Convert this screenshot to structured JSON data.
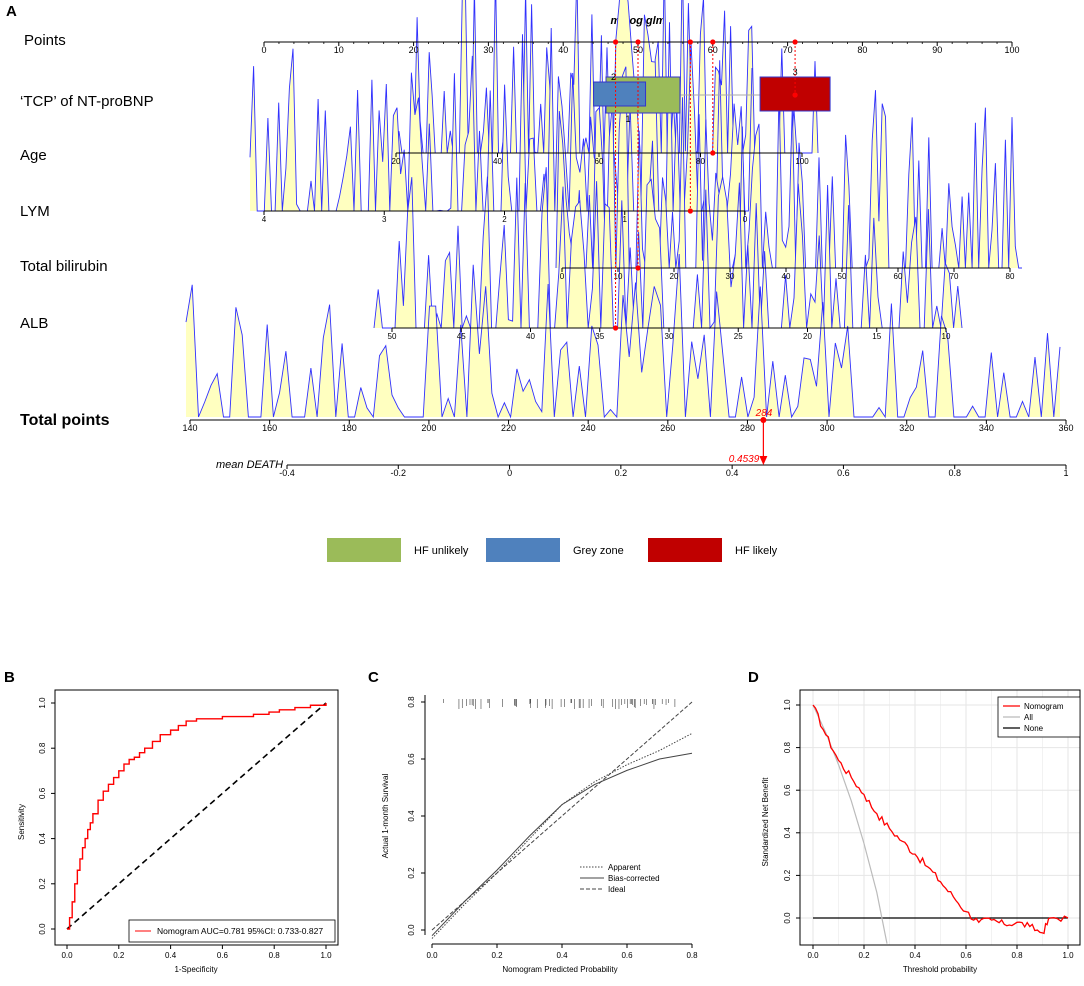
{
  "panels": {
    "A": "A",
    "B": "B",
    "C": "C",
    "D": "D"
  },
  "chart_data": [
    {
      "type": "nomogram",
      "panel": "A",
      "title": "mylog glm",
      "points_axis": {
        "label": "Points",
        "range": [
          0,
          100
        ],
        "ticks": [
          0,
          10,
          20,
          30,
          40,
          50,
          60,
          70,
          80,
          90,
          100
        ]
      },
      "variables": [
        {
          "name": "‘TCP’ of NT-proBNP",
          "type": "categorical",
          "categories": [
            {
              "label": "1",
              "group": "HF unlikely",
              "points": 50
            },
            {
              "label": "2",
              "group": "Grey zone",
              "points": 47
            },
            {
              "label": "3",
              "group": "HF likely",
              "points": 71
            }
          ]
        },
        {
          "name": "Age",
          "range": [
            20,
            100
          ],
          "ticks": [
            20,
            40,
            60,
            80,
            100
          ],
          "selected": 81,
          "selected_points": 60
        },
        {
          "name": "LYM",
          "range": [
            4,
            0
          ],
          "ticks": [
            4,
            3,
            2,
            1,
            0
          ],
          "selected": 0.5,
          "selected_points": 57
        },
        {
          "name": "Total bilirubin",
          "range": [
            0,
            80
          ],
          "ticks": [
            0,
            10,
            20,
            30,
            40,
            50,
            60,
            70,
            80
          ],
          "selected": 13,
          "selected_points": 50
        },
        {
          "name": "ALB",
          "range": [
            50,
            10
          ],
          "ticks": [
            50,
            45,
            40,
            35,
            30,
            25,
            20,
            15,
            10
          ],
          "selected": 34,
          "selected_points": 47
        }
      ],
      "total_points": {
        "label": "Total points",
        "range": [
          140,
          360
        ],
        "ticks": [
          140,
          160,
          180,
          200,
          220,
          240,
          260,
          280,
          300,
          320,
          340,
          360
        ],
        "value": 284,
        "value_label": "284"
      },
      "mean_death": {
        "label": "mean DEATH",
        "range": [
          -0.4,
          1
        ],
        "ticks": [
          -0.4,
          -0.2,
          0,
          0.2,
          0.4,
          0.6,
          0.8,
          1
        ],
        "tick_labels": [
          "-0.4",
          "-0.2",
          "0",
          "0.2",
          "0.4",
          "0.6",
          "0.8",
          "1"
        ],
        "value": 0.4539,
        "value_label": "0.4539"
      },
      "legend": [
        {
          "label": "HF unlikely",
          "color": "#9bbb59"
        },
        {
          "label": "Grey zone",
          "color": "#4f81bd"
        },
        {
          "label": "HF likely",
          "color": "#c00000"
        }
      ]
    },
    {
      "type": "line",
      "panel": "B",
      "xlabel": "1-Specificity",
      "ylabel": "Sensitivity",
      "xlim": [
        0,
        1
      ],
      "ylim": [
        0,
        1
      ],
      "ticks": [
        0,
        0.2,
        0.4,
        0.6,
        0.8,
        1
      ],
      "tick_labels": [
        "0.0",
        "0.2",
        "0.4",
        "0.6",
        "0.8",
        "1.0"
      ],
      "series": [
        {
          "name": "Nomogram AUC=0.781  95%CI: 0.733-0.827",
          "color": "#ff0000",
          "x": [
            0,
            0.01,
            0.02,
            0.03,
            0.04,
            0.05,
            0.06,
            0.07,
            0.08,
            0.09,
            0.1,
            0.12,
            0.14,
            0.16,
            0.18,
            0.2,
            0.22,
            0.24,
            0.26,
            0.28,
            0.3,
            0.33,
            0.36,
            0.4,
            0.43,
            0.46,
            0.5,
            0.55,
            0.6,
            0.66,
            0.72,
            0.78,
            0.82,
            0.88,
            0.94,
            1.0
          ],
          "y": [
            0,
            0.05,
            0.12,
            0.2,
            0.26,
            0.31,
            0.36,
            0.4,
            0.44,
            0.47,
            0.51,
            0.57,
            0.61,
            0.64,
            0.67,
            0.7,
            0.73,
            0.75,
            0.76,
            0.78,
            0.8,
            0.83,
            0.86,
            0.88,
            0.9,
            0.92,
            0.93,
            0.93,
            0.94,
            0.94,
            0.95,
            0.96,
            0.97,
            0.98,
            0.99,
            1.0
          ]
        },
        {
          "name": "Reference",
          "color": "#000000",
          "x": [
            0,
            1
          ],
          "y": [
            0,
            1
          ]
        }
      ]
    },
    {
      "type": "line",
      "panel": "C",
      "xlabel": "Nomogram Predicted Probability",
      "ylabel": "Actual 1-month Survival",
      "xlim": [
        0,
        0.8
      ],
      "ylim": [
        0,
        0.8
      ],
      "ticks": [
        0,
        0.2,
        0.4,
        0.6,
        0.8
      ],
      "tick_labels": [
        "0.0",
        "0.2",
        "0.4",
        "0.6",
        "0.8"
      ],
      "series": [
        {
          "name": "Apparent",
          "x": [
            0,
            0.1,
            0.2,
            0.3,
            0.4,
            0.5,
            0.6,
            0.7,
            0.8
          ],
          "y": [
            -0.03,
            0.09,
            0.2,
            0.32,
            0.44,
            0.52,
            0.58,
            0.63,
            0.69
          ]
        },
        {
          "name": "Bias-corrected",
          "x": [
            0,
            0.1,
            0.2,
            0.3,
            0.4,
            0.5,
            0.6,
            0.7,
            0.8
          ],
          "y": [
            -0.02,
            0.1,
            0.21,
            0.33,
            0.44,
            0.51,
            0.56,
            0.6,
            0.62
          ]
        },
        {
          "name": "Ideal",
          "x": [
            0,
            0.8
          ],
          "y": [
            0,
            0.8
          ]
        }
      ]
    },
    {
      "type": "line",
      "panel": "D",
      "xlabel": "Threshold probability",
      "ylabel": "Standardized Net Benefit",
      "xlim": [
        0,
        1
      ],
      "ylim": [
        -0.1,
        1
      ],
      "xticks": [
        0,
        0.2,
        0.4,
        0.6,
        0.8,
        1
      ],
      "xtick_labels": [
        "0.0",
        "0.2",
        "0.4",
        "0.6",
        "0.8",
        "1.0"
      ],
      "yticks": [
        0,
        0.2,
        0.4,
        0.6,
        0.8,
        1
      ],
      "ytick_labels": [
        "0.0",
        "0.2",
        "0.4",
        "0.6",
        "0.8",
        "1.0"
      ],
      "series": [
        {
          "name": "Nomogram",
          "color": "#ff0000",
          "x": [
            0,
            0.05,
            0.1,
            0.15,
            0.2,
            0.25,
            0.3,
            0.35,
            0.4,
            0.45,
            0.5,
            0.55,
            0.6,
            0.65,
            0.7,
            0.75,
            0.8,
            0.85,
            0.9,
            0.93,
            1.0
          ],
          "y": [
            1.0,
            0.86,
            0.74,
            0.66,
            0.58,
            0.49,
            0.42,
            0.36,
            0.3,
            0.24,
            0.17,
            0.1,
            0.03,
            -0.02,
            -0.01,
            -0.03,
            -0.02,
            -0.04,
            -0.07,
            0.0,
            0.0
          ]
        },
        {
          "name": "All",
          "color": "#bbbbbb",
          "x": [
            0,
            0.05,
            0.1,
            0.15,
            0.2,
            0.25,
            0.29
          ],
          "y": [
            1.0,
            0.87,
            0.72,
            0.55,
            0.35,
            0.12,
            -0.12
          ]
        },
        {
          "name": "None",
          "color": "#000000",
          "x": [
            0,
            1
          ],
          "y": [
            0,
            0
          ]
        }
      ]
    }
  ]
}
